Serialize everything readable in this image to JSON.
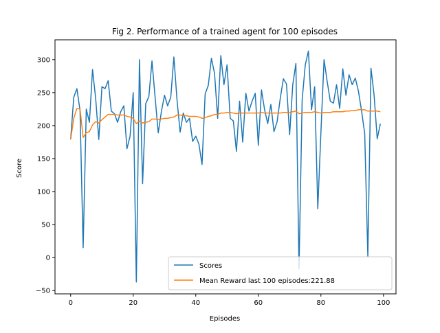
{
  "chart_data": {
    "type": "line",
    "title": "Fig 2. Performance of a trained agent for 100 episodes",
    "xlabel": "Episodes",
    "ylabel": "Score",
    "xlim": [
      -5,
      104
    ],
    "ylim": [
      -55,
      330
    ],
    "xticks": [
      0,
      20,
      40,
      60,
      80,
      100
    ],
    "yticks": [
      -50,
      0,
      50,
      100,
      150,
      200,
      250,
      300
    ],
    "grid": false,
    "legend_position": "lower-right",
    "series": [
      {
        "name": "Scores",
        "color": "#1f77b4",
        "x": [
          0,
          1,
          2,
          3,
          4,
          5,
          6,
          7,
          8,
          9,
          10,
          11,
          12,
          13,
          14,
          15,
          16,
          17,
          18,
          19,
          20,
          21,
          22,
          23,
          24,
          25,
          26,
          27,
          28,
          29,
          30,
          31,
          32,
          33,
          34,
          35,
          36,
          37,
          38,
          39,
          40,
          41,
          42,
          43,
          44,
          45,
          46,
          47,
          48,
          49,
          50,
          51,
          52,
          53,
          54,
          55,
          56,
          57,
          58,
          59,
          60,
          61,
          62,
          63,
          64,
          65,
          66,
          67,
          68,
          69,
          70,
          71,
          72,
          73,
          74,
          75,
          76,
          77,
          78,
          79,
          80,
          81,
          82,
          83,
          84,
          85,
          86,
          87,
          88,
          89,
          90,
          91,
          92,
          93,
          94,
          95,
          96,
          97,
          98,
          99
        ],
        "values": [
          179,
          243,
          256,
          223,
          15,
          225,
          205,
          285,
          241,
          179,
          259,
          256,
          268,
          222,
          218,
          205,
          221,
          230,
          165,
          184,
          250,
          -37,
          300,
          112,
          233,
          244,
          298,
          243,
          189,
          221,
          246,
          230,
          243,
          304,
          239,
          190,
          219,
          205,
          211,
          176,
          184,
          172,
          141,
          248,
          261,
          302,
          279,
          211,
          306,
          262,
          292,
          211,
          207,
          161,
          237,
          175,
          249,
          222,
          237,
          249,
          170,
          254,
          224,
          203,
          232,
          191,
          206,
          241,
          271,
          263,
          186,
          262,
          294,
          -17,
          239,
          292,
          313,
          224,
          259,
          74,
          190,
          300,
          267,
          237,
          234,
          262,
          226,
          286,
          246,
          277,
          262,
          272,
          252,
          222,
          188,
          2,
          287,
          246,
          180,
          203
        ]
      },
      {
        "name": "Mean Reward last 100 episodes:221.88",
        "color": "#ff7f0e",
        "x": [
          0,
          1,
          2,
          3,
          4,
          5,
          6,
          7,
          8,
          9,
          10,
          11,
          12,
          13,
          14,
          15,
          16,
          17,
          18,
          19,
          20,
          21,
          22,
          23,
          24,
          25,
          26,
          27,
          28,
          29,
          30,
          31,
          32,
          33,
          34,
          35,
          36,
          37,
          38,
          39,
          40,
          41,
          42,
          43,
          44,
          45,
          46,
          47,
          48,
          49,
          50,
          51,
          52,
          53,
          54,
          55,
          56,
          57,
          58,
          59,
          60,
          61,
          62,
          63,
          64,
          65,
          66,
          67,
          68,
          69,
          70,
          71,
          72,
          73,
          74,
          75,
          76,
          77,
          78,
          79,
          80,
          81,
          82,
          83,
          84,
          85,
          86,
          87,
          88,
          89,
          90,
          91,
          92,
          93,
          94,
          95,
          96,
          97,
          98,
          99
        ],
        "values": [
          179,
          211,
          226,
          225,
          182,
          189,
          191,
          201,
          206,
          204,
          209,
          213,
          217,
          217,
          217,
          216,
          216,
          216,
          214,
          213,
          211,
          203,
          207,
          204,
          205,
          206,
          210,
          210,
          209,
          210,
          211,
          211,
          212,
          213,
          216,
          216,
          215,
          215,
          214,
          214,
          214,
          213,
          211,
          212,
          214,
          215,
          217,
          217,
          219,
          219,
          220,
          220,
          219,
          218,
          219,
          219,
          219,
          219,
          219,
          219,
          219,
          220,
          219,
          219,
          219,
          219,
          219,
          219,
          220,
          220,
          220,
          221,
          222,
          218,
          219,
          220,
          220,
          220,
          221,
          220,
          219,
          220,
          220,
          220,
          221,
          221,
          221,
          221,
          222,
          222,
          223,
          223,
          224,
          224,
          224,
          222,
          222,
          222,
          222,
          221
        ]
      }
    ]
  }
}
